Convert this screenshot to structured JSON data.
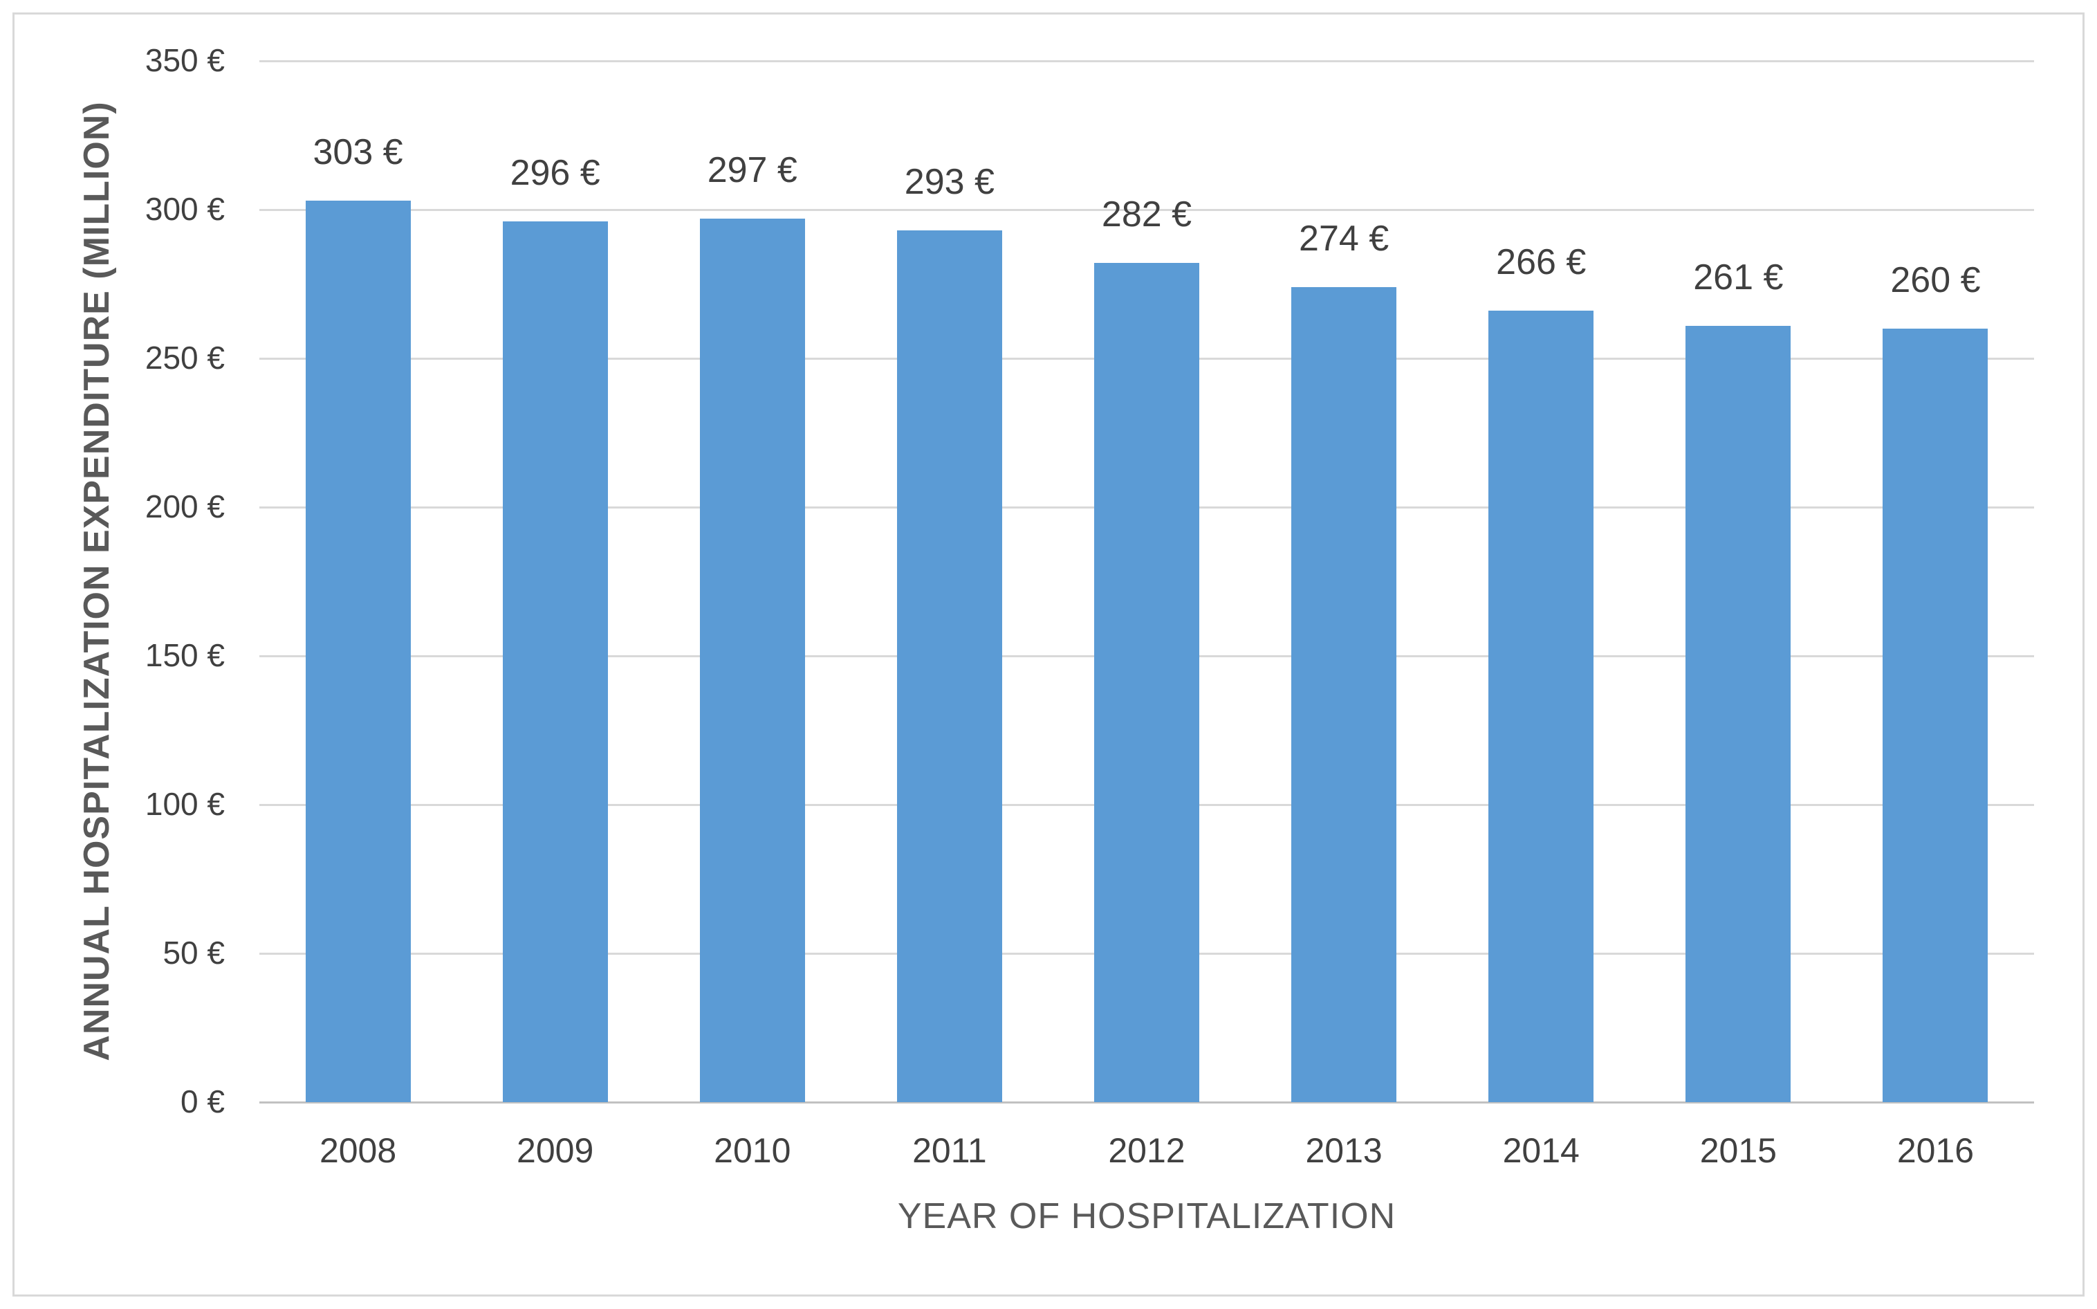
{
  "chart_data": {
    "type": "bar",
    "title": "",
    "categories": [
      "2008",
      "2009",
      "2010",
      "2011",
      "2012",
      "2013",
      "2014",
      "2015",
      "2016"
    ],
    "values": [
      303,
      296,
      297,
      293,
      282,
      274,
      266,
      261,
      260
    ],
    "value_labels": [
      "303 €",
      "296 €",
      "297 €",
      "293 €",
      "282 €",
      "274 €",
      "266 €",
      "261 €",
      "260 €"
    ],
    "xlabel": "YEAR OF HOSPITALIZATION",
    "ylabel": "ANNUAL HOSPITALIZATION EXPENDITURE (MILLION)",
    "ylim": [
      0,
      350
    ],
    "ytick_step": 50,
    "ytick_labels": [
      "0 €",
      "50 €",
      "100 €",
      "150 €",
      "200 €",
      "250 €",
      "300 €",
      "350 €"
    ],
    "grid": "horizontal",
    "legend": "none",
    "bar_color": "#5B9BD5"
  },
  "colors": {
    "bar": "#5B9BD5",
    "gridline": "#D9D9D9",
    "zero_axis": "#C1C1C1",
    "tick_text": "#404040",
    "title_text": "#595959",
    "chart_border": "#D9D9D9",
    "background": "#FFFFFF"
  }
}
